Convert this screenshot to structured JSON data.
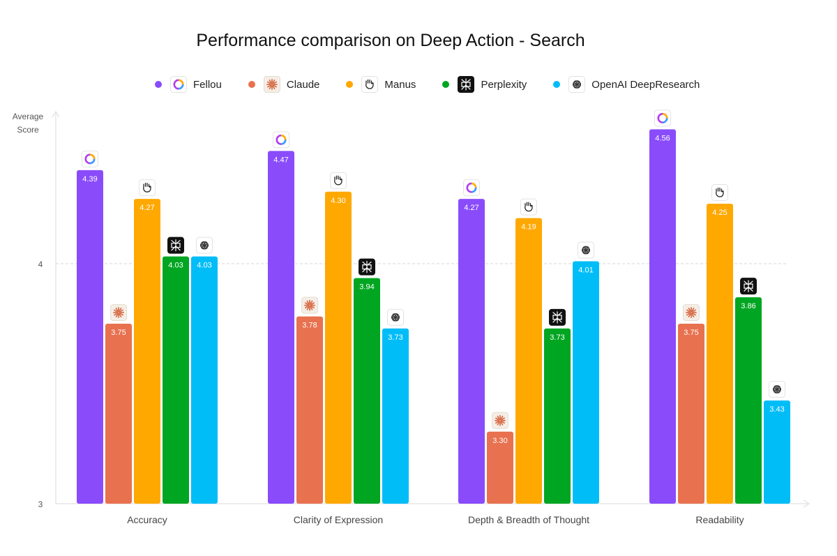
{
  "chart_data": {
    "type": "bar",
    "title": "Performance comparison on Deep Action - Search",
    "ylabel": "Average Score",
    "xlabel": "",
    "ylim": [
      3,
      4.65
    ],
    "yticks": [
      3,
      4
    ],
    "grid": "dashed line at 4",
    "legend_placement": "top-center",
    "categories": [
      "Accuracy",
      "Clarity of Expression",
      "Depth & Breadth of Thought",
      "Readability"
    ],
    "series": [
      {
        "name": "Fellou",
        "color": "#8a4cfb",
        "icon": "fellou-ring-icon",
        "values": [
          4.39,
          4.47,
          4.27,
          4.56
        ]
      },
      {
        "name": "Claude",
        "color": "#e8714f",
        "icon": "claude-burst-icon",
        "values": [
          3.75,
          3.78,
          3.3,
          3.75
        ]
      },
      {
        "name": "Manus",
        "color": "#ffa800",
        "icon": "manus-hand-icon",
        "values": [
          4.27,
          4.3,
          4.19,
          4.25
        ]
      },
      {
        "name": "Perplexity",
        "color": "#00a521",
        "icon": "perplexity-icon",
        "values": [
          4.03,
          3.94,
          3.73,
          3.86
        ]
      },
      {
        "name": "OpenAI DeepResearch",
        "color": "#00bdf8",
        "icon": "openai-knot-icon",
        "values": [
          4.03,
          3.73,
          4.01,
          3.43
        ]
      }
    ],
    "value_labels": [
      [
        "4.39",
        "4.47",
        "4.27",
        "4.56"
      ],
      [
        "3.75",
        "3.78",
        "3.30",
        "3.75"
      ],
      [
        "4.27",
        "4.30",
        "4.19",
        "4.25"
      ],
      [
        "4.03",
        "3.94",
        "3.73",
        "3.86"
      ],
      [
        "4.03",
        "3.73",
        "4.01",
        "3.43"
      ]
    ],
    "ytick_labels": [
      "3",
      "4"
    ]
  }
}
